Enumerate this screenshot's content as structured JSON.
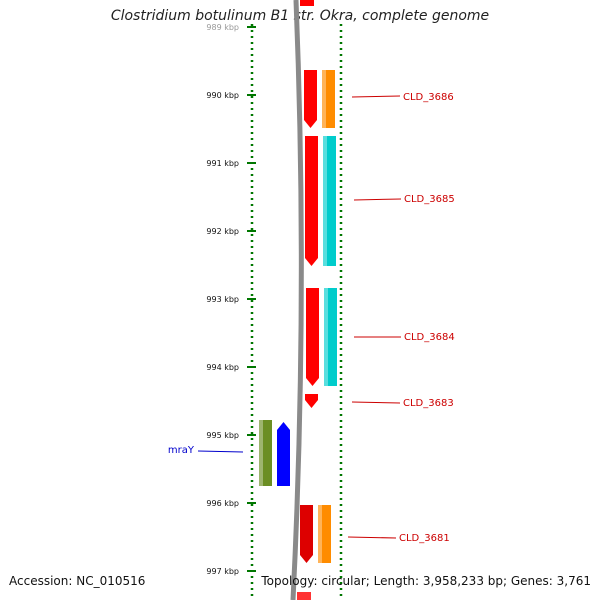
{
  "title": "Clostridium botulinum B1 str. Okra, complete genome",
  "accession_text": "Accession: NC_010516",
  "topology_text": "Topology: circular; Length: 3,958,233 bp; Genes: 3,761",
  "scale_unit": "kbp",
  "ticks_kbp": [
    989,
    990,
    991,
    992,
    993,
    994,
    995,
    996,
    997
  ],
  "genes": [
    {
      "name": "CLD_3686",
      "strand": "-",
      "label_color": "#cc0000",
      "colors": {
        "gene": "#ff0000",
        "cds": "#ff8c00"
      }
    },
    {
      "name": "CLD_3685",
      "strand": "-",
      "label_color": "#cc0000",
      "colors": {
        "gene": "#ff0000",
        "cds": "#00cccc"
      }
    },
    {
      "name": "CLD_3684",
      "strand": "-",
      "label_color": "#cc0000",
      "colors": {
        "gene": "#ff0000",
        "cds": "#00cccc"
      }
    },
    {
      "name": "CLD_3683",
      "strand": "-",
      "label_color": "#cc0000",
      "colors": {
        "gene": "#ff0000"
      }
    },
    {
      "name": "mraY",
      "strand": "+",
      "label_color": "#0000cc",
      "colors": {
        "gene": "#0000ff",
        "cds": "#6b8e23"
      }
    },
    {
      "name": "CLD_3681",
      "strand": "-",
      "label_color": "#cc0000",
      "colors": {
        "gene": "#dd0000",
        "cds": "#ff8c00"
      }
    }
  ],
  "colors": {
    "backbone": "#8a8a8a",
    "scale": "#007700",
    "tick_label": "#111111"
  }
}
